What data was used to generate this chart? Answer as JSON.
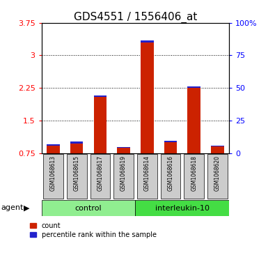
{
  "title": "GDS4551 / 1556406_at",
  "samples": [
    "GSM1068613",
    "GSM1068615",
    "GSM1068617",
    "GSM1068619",
    "GSM1068614",
    "GSM1068616",
    "GSM1068618",
    "GSM1068620"
  ],
  "groups": [
    "control",
    "control",
    "control",
    "control",
    "interleukin-10",
    "interleukin-10",
    "interleukin-10",
    "interleukin-10"
  ],
  "red_values": [
    0.92,
    0.97,
    2.05,
    0.87,
    3.3,
    1.0,
    2.25,
    0.9
  ],
  "blue_values": [
    0.03,
    0.04,
    0.03,
    0.02,
    0.04,
    0.03,
    0.04,
    0.02
  ],
  "baseline": 0.75,
  "ylim_left": [
    0.75,
    3.75
  ],
  "ylim_right": [
    0,
    100
  ],
  "yticks_left": [
    0.75,
    1.5,
    2.25,
    3.0,
    3.75
  ],
  "ytick_labels_left": [
    "0.75",
    "1.5",
    "2.25",
    "3",
    "3.75"
  ],
  "yticks_right": [
    0,
    25,
    50,
    75,
    100
  ],
  "ytick_labels_right": [
    "0",
    "25",
    "50",
    "75",
    "100%"
  ],
  "grid_lines": [
    1.5,
    2.25,
    3.0
  ],
  "bar_color_red": "#cc2200",
  "bar_color_blue": "#2222cc",
  "control_color": "#90ee90",
  "interleukin_color": "#44dd44",
  "title_fontsize": 11,
  "tick_fontsize": 8,
  "bar_width": 0.55,
  "sample_label_fontsize": 5.5,
  "group_label_fontsize": 8,
  "legend_fontsize": 7,
  "agent_fontsize": 8,
  "gray_box": "#cccccc"
}
